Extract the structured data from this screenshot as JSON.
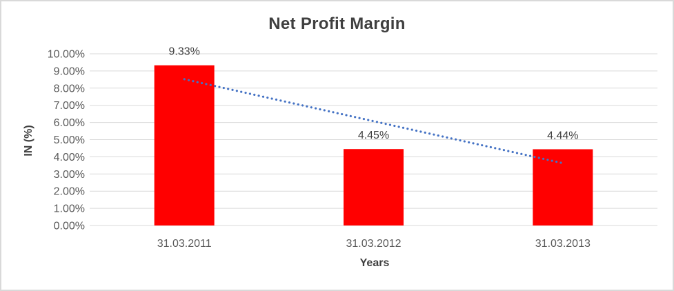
{
  "chart_data": {
    "type": "bar",
    "title": "Net Profit Margin",
    "xlabel": "Years",
    "ylabel": "IN (%)",
    "categories": [
      "31.03.2011",
      "31.03.2012",
      "31.03.2013"
    ],
    "values": [
      9.33,
      4.45,
      4.44
    ],
    "value_labels": [
      "9.33%",
      "4.45%",
      "4.44%"
    ],
    "ylim": [
      0,
      10
    ],
    "ytick_step": 1,
    "ytick_labels": [
      "0.00%",
      "1.00%",
      "2.00%",
      "3.00%",
      "4.00%",
      "5.00%",
      "6.00%",
      "7.00%",
      "8.00%",
      "9.00%",
      "10.00%"
    ],
    "grid": true,
    "legend": "none",
    "trendline": {
      "type": "linear",
      "style": "dotted",
      "start_value": 8.52,
      "end_value": 3.63
    }
  },
  "colors": {
    "bar": "#FF0000",
    "trendline": "#4472C4",
    "gridline": "#D9D9D9",
    "tick_text": "#595959",
    "value_label_text": "#404040",
    "title_text": "#3F3F3F",
    "axis_title_text": "#3F3F3F",
    "frame_border": "#D9D9D9",
    "background": "#FFFFFF"
  }
}
